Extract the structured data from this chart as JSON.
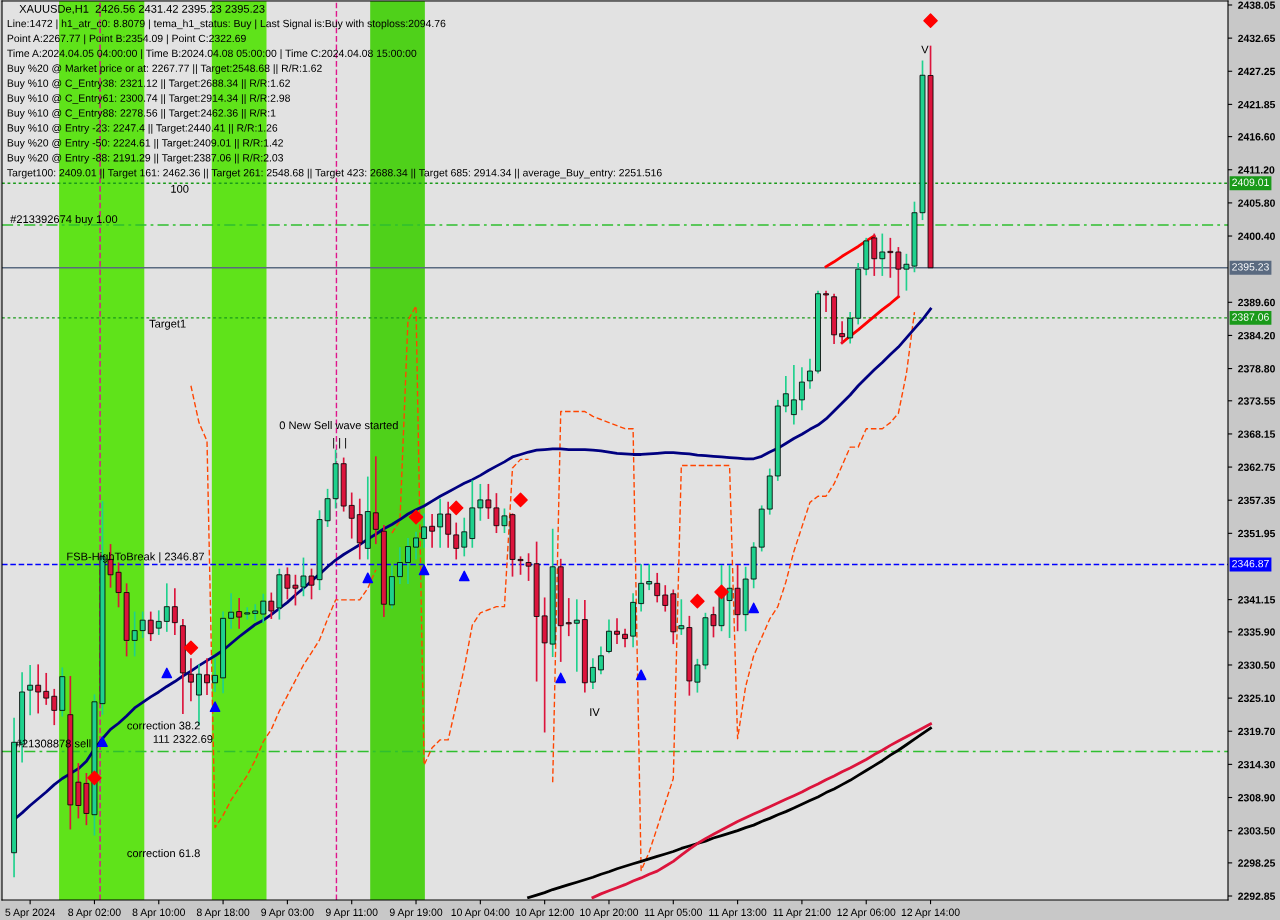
{
  "chart_data": {
    "type": "candlestick",
    "title": "XAUUSDe,H1  2426.56 2431.42 2395.23 2395.23",
    "annotations": [
      "Line:1472 | h1_atr_c0: 8.8079 | tema_h1_status: Buy | Last Signal is:Buy with stoploss:2094.76",
      "Point A:2267.77 | Point B:2354.09 | Point C:2322.69",
      "Time A:2024.04.05 04:00:00 | Time B:2024.04.08 05:00:00 | Time C:2024.04.08 15:00:00",
      "Buy %20 @ Market price or at: 2267.77 || Target:2548.68 || R/R:1.62",
      "Buy %10 @ C_Entry38: 2321.12 || Target:2688.34 || R/R:1.62",
      "Buy %10 @ C_Entry61: 2300.74 || Target:2914.34 || R/R:2.98",
      "Buy %10 @ C_Entry88: 2278.56 || Target:2462.36 || R/R:1",
      "Buy %10 @ Entry -23: 2247.4 || Target:2440.41 || R/R:1.26",
      "Buy %20 @ Entry -50: 2224.61 || Target:2409.01 || R/R:1.42",
      "Buy %20 @ Entry -88: 2191.29 || Target:2387.06 || R/R:2.03",
      "Target100: 2409.01 || Target 161: 2462.36 || Target 261: 2548.68 || Target 423: 2688.34 || Target 685: 2914.34 || average_Buy_entry: 2251.516",
      "100",
      "Target1",
      {
        "text": "#213392674 buy 1.00",
        "y": 2403.0
      },
      "FSB-HighToBreak | 2346.87",
      "0 New Sell wave started",
      "| | |",
      "correction 38.2",
      "111 2322.69",
      "#21308878 sell",
      "correction 61.8",
      "IV",
      "V"
    ],
    "categories": [
      null,
      null,
      "5 Apr 2024",
      null,
      null,
      null,
      null,
      null,
      null,
      null,
      "8 Apr 02:00",
      null,
      null,
      null,
      null,
      null,
      null,
      null,
      "8 Apr 10:00",
      null,
      null,
      null,
      null,
      null,
      null,
      null,
      "8 Apr 18:00",
      null,
      null,
      null,
      null,
      null,
      null,
      null,
      "9 Apr 03:00",
      null,
      null,
      null,
      null,
      null,
      null,
      null,
      "9 Apr 11:00",
      null,
      null,
      null,
      null,
      null,
      null,
      null,
      "9 Apr 19:00",
      null,
      null,
      null,
      null,
      null,
      null,
      null,
      "10 Apr 04:00",
      null,
      null,
      null,
      null,
      null,
      null,
      null,
      "10 Apr 12:00",
      null,
      null,
      null,
      null,
      null,
      null,
      null,
      "10 Apr 20:00",
      null,
      null,
      null,
      null,
      null,
      null,
      null,
      "11 Apr 05:00",
      null,
      null,
      null,
      null,
      null,
      null,
      null,
      "11 Apr 13:00",
      null,
      null,
      null,
      null,
      null,
      null,
      null,
      "11 Apr 21:00",
      null,
      null,
      null,
      null,
      null,
      null,
      null,
      "12 Apr 06:00",
      null,
      null,
      null,
      null,
      null,
      null,
      null,
      "12 Apr 14:00"
    ],
    "ohlc": [
      [
        2299.9,
        2321.9,
        2295.9,
        2317.9
      ],
      [
        2317.6,
        2329.3,
        2314.6,
        2326.1
      ],
      [
        2326.4,
        2330.5,
        2322.3,
        2327.2
      ],
      [
        2327.2,
        2330.6,
        2322.6,
        2326.1
      ],
      [
        2326.2,
        2329.2,
        2324,
        2325.1
      ],
      [
        2325.4,
        2326.6,
        2320.7,
        2323.1
      ],
      [
        2323.1,
        2330.1,
        2322.1,
        2328.6
      ],
      [
        2322.4,
        2328.7,
        2303.7,
        2307.7
      ],
      [
        2311.4,
        2314.5,
        2305.5,
        2307.6
      ],
      [
        2311.2,
        2312.9,
        2304.4,
        2306.3
      ],
      [
        2306.1,
        2325.7,
        2302.7,
        2324.5
      ],
      [
        2324.2,
        2357.2,
        2322.4,
        2348.2
      ],
      [
        2347.7,
        2350.2,
        2343.1,
        2345.2
      ],
      [
        2345.6,
        2347.2,
        2339.9,
        2342.3
      ],
      [
        2342.3,
        2343.8,
        2331.9,
        2334.5
      ],
      [
        2334.5,
        2339.2,
        2331.9,
        2336.1
      ],
      [
        2336.1,
        2339.2,
        2334.9,
        2337.8
      ],
      [
        2337.8,
        2339.2,
        2334.4,
        2335.6
      ],
      [
        2336.5,
        2339.4,
        2335.4,
        2337.6
      ],
      [
        2337.6,
        2343.8,
        2335.9,
        2340
      ],
      [
        2340,
        2343,
        2335.4,
        2337.4
      ],
      [
        2336.9,
        2338,
        2322.5,
        2329.2
      ],
      [
        2329,
        2331.6,
        2324.6,
        2327.7
      ],
      [
        2325.6,
        2330.6,
        2320.6,
        2329
      ],
      [
        2328.9,
        2331.6,
        2325.6,
        2327.6
      ],
      [
        2327.6,
        2331.6,
        2326.1,
        2328.8
      ],
      [
        2328.4,
        2339.2,
        2325.9,
        2338.1
      ],
      [
        2338.1,
        2342.2,
        2336.4,
        2339.1
      ],
      [
        2339.2,
        2341.4,
        2336.4,
        2338.3
      ],
      [
        2338.8,
        2339.9,
        2337.9,
        2339
      ],
      [
        2338.9,
        2340.4,
        2337.7,
        2339.3
      ],
      [
        2338.8,
        2342.1,
        2337.3,
        2340.9
      ],
      [
        2340.9,
        2342.3,
        2338,
        2339.3
      ],
      [
        2339.8,
        2346.2,
        2337.9,
        2345.2
      ],
      [
        2345.2,
        2346.4,
        2341.2,
        2343
      ],
      [
        2343.5,
        2345.2,
        2340.2,
        2343
      ],
      [
        2343.2,
        2348,
        2341.7,
        2345
      ],
      [
        2345,
        2346.2,
        2341.2,
        2343.5
      ],
      [
        2344.4,
        2355.7,
        2342.7,
        2354.2
      ],
      [
        2354,
        2359.2,
        2353,
        2357.6
      ],
      [
        2357.6,
        2365.6,
        2356,
        2363.3
      ],
      [
        2363.3,
        2364.3,
        2355.5,
        2356.4
      ],
      [
        2356.5,
        2358.6,
        2351.1,
        2354.4
      ],
      [
        2355,
        2357.6,
        2347.7,
        2350.4
      ],
      [
        2349.5,
        2361.2,
        2347.7,
        2355.5
      ],
      [
        2355.3,
        2364.5,
        2350.2,
        2352.6
      ],
      [
        2352.3,
        2353.3,
        2338.3,
        2340.4
      ],
      [
        2340.3,
        2346.7,
        2339.7,
        2344.9
      ],
      [
        2344.9,
        2349.7,
        2343.7,
        2347.2
      ],
      [
        2347.2,
        2351.2,
        2343.7,
        2349.8
      ],
      [
        2349.7,
        2352.2,
        2347.7,
        2351.2
      ],
      [
        2351.1,
        2355.2,
        2349.6,
        2353
      ],
      [
        2353.1,
        2355.1,
        2349.6,
        2352.3
      ],
      [
        2353,
        2357.6,
        2349.6,
        2355.1
      ],
      [
        2355.1,
        2357.1,
        2349.6,
        2351.8
      ],
      [
        2351.7,
        2353.7,
        2347.7,
        2349.5
      ],
      [
        2349.7,
        2354.5,
        2348.2,
        2352.2
      ],
      [
        2351.1,
        2360.6,
        2349.6,
        2356.1
      ],
      [
        2356.1,
        2360,
        2354,
        2357.4
      ],
      [
        2357.4,
        2360,
        2354.3,
        2356.1
      ],
      [
        2356.1,
        2358.5,
        2352,
        2353.2
      ],
      [
        2353.2,
        2356,
        2352,
        2354.8
      ],
      [
        2355,
        2355.2,
        2344.9,
        2347.7
      ],
      [
        2347.7,
        2348.2,
        2345.2,
        2347.5
      ],
      [
        2347.2,
        2348.7,
        2344.2,
        2346.6
      ],
      [
        2347,
        2350.6,
        2327.8,
        2338.4
      ],
      [
        2338.5,
        2341.5,
        2319.5,
        2334.1
      ],
      [
        2333.9,
        2352.7,
        2331.8,
        2346.5
      ],
      [
        2346.5,
        2347.8,
        2331,
        2336.9
      ],
      [
        2337.4,
        2341.4,
        2335.2,
        2337.2
      ],
      [
        2337.3,
        2341.2,
        2329.4,
        2337.8
      ],
      [
        2337.9,
        2341.1,
        2326,
        2327.6
      ],
      [
        2327.7,
        2331.6,
        2326.6,
        2330.1
      ],
      [
        2329.7,
        2333.5,
        2329,
        2332
      ],
      [
        2332.7,
        2337.9,
        2332.4,
        2336
      ],
      [
        2336,
        2338.1,
        2333.9,
        2335.5
      ],
      [
        2335.5,
        2336.4,
        2333.4,
        2334.8
      ],
      [
        2335.2,
        2342.2,
        2333.4,
        2340.7
      ],
      [
        2340.5,
        2346.9,
        2339.2,
        2343.8
      ],
      [
        2343.7,
        2346.9,
        2342.7,
        2344.1
      ],
      [
        2343.8,
        2345.5,
        2340.7,
        2341.8
      ],
      [
        2341.9,
        2343.5,
        2339.2,
        2340.2
      ],
      [
        2342.1,
        2342.8,
        2333.9,
        2335.9
      ],
      [
        2336.4,
        2341.2,
        2335.4,
        2336.9
      ],
      [
        2336.6,
        2338.5,
        2325.5,
        2327.9
      ],
      [
        2327.7,
        2331.5,
        2326,
        2330.5
      ],
      [
        2330.5,
        2339,
        2329.8,
        2338.2
      ],
      [
        2338.7,
        2340,
        2335,
        2336.9
      ],
      [
        2336.9,
        2346.8,
        2336,
        2343
      ],
      [
        2341,
        2346.8,
        2334.9,
        2343
      ],
      [
        2343,
        2346.8,
        2336,
        2338.7
      ],
      [
        2338.7,
        2346.5,
        2336,
        2344.5
      ],
      [
        2344.5,
        2350.5,
        2343,
        2349.7
      ],
      [
        2349.7,
        2356.5,
        2349,
        2355.9
      ],
      [
        2355.9,
        2362.5,
        2355,
        2361.3
      ],
      [
        2361.3,
        2373.7,
        2360.5,
        2372.7
      ],
      [
        2372.7,
        2377.6,
        2371.7,
        2374.7
      ],
      [
        2371.3,
        2379.4,
        2369.7,
        2373.7
      ],
      [
        2373.7,
        2379,
        2372,
        2376.6
      ],
      [
        2376.8,
        2380.4,
        2375.5,
        2378.4
      ],
      [
        2378.4,
        2391.5,
        2378,
        2391
      ],
      [
        2391,
        2391.5,
        2388,
        2390.8
      ],
      [
        2390.5,
        2391,
        2382.8,
        2384.3
      ],
      [
        2384.5,
        2386.5,
        2382.8,
        2384
      ],
      [
        2383.8,
        2388,
        2382.9,
        2387
      ],
      [
        2387,
        2396,
        2386,
        2395
      ],
      [
        2395,
        2400.1,
        2394,
        2399.6
      ],
      [
        2400.1,
        2400.8,
        2393.9,
        2396.7
      ],
      [
        2396.7,
        2400.8,
        2393.9,
        2397.8
      ],
      [
        2397.9,
        2400.1,
        2393.6,
        2397.7
      ],
      [
        2397.8,
        2398.6,
        2390.5,
        2395
      ],
      [
        2395,
        2397.5,
        2391.5,
        2395.8
      ],
      [
        2395.5,
        2406,
        2394.5,
        2404.2
      ],
      [
        2404.2,
        2429,
        2403,
        2426.6
      ],
      [
        2426.56,
        2431.42,
        2395.23,
        2395.23
      ]
    ],
    "colors": [
      "#1fd18d",
      "#1fd18d",
      "#1fd18d",
      "#dc143c",
      "#dc143c",
      "#dc143c",
      "#1fd18d",
      "#dc143c",
      "#dc143c",
      "#dc143c",
      "#1fd18d",
      "#1fd18d",
      "#dc143c",
      "#dc143c",
      "#dc143c",
      "#1fd18d",
      "#1fd18d",
      "#dc143c",
      "#1fd18d",
      "#1fd18d",
      "#dc143c",
      "#dc143c",
      "#dc143c",
      "#1fd18d",
      "#dc143c",
      "#1fd18d",
      "#1fd18d",
      "#1fd18d",
      "#dc143c",
      "#1fd18d",
      "#1fd18d",
      "#1fd18d",
      "#dc143c",
      "#1fd18d",
      "#dc143c",
      "#dc143c",
      "#1fd18d",
      "#dc143c",
      "#1fd18d",
      "#1fd18d",
      "#1fd18d",
      "#dc143c",
      "#dc143c",
      "#dc143c",
      "#1fd18d",
      "#dc143c",
      "#dc143c",
      "#1fd18d",
      "#1fd18d",
      "#1fd18d",
      "#1fd18d",
      "#1fd18d",
      "#dc143c",
      "#1fd18d",
      "#dc143c",
      "#dc143c",
      "#1fd18d",
      "#1fd18d",
      "#1fd18d",
      "#dc143c",
      "#dc143c",
      "#1fd18d",
      "#dc143c",
      "#dc143c",
      "#dc143c",
      "#dc143c",
      "#dc143c",
      "#1fd18d",
      "#dc143c",
      "#dc143c",
      "#1fd18d",
      "#dc143c",
      "#1fd18d",
      "#1fd18d",
      "#1fd18d",
      "#dc143c",
      "#dc143c",
      "#1fd18d",
      "#1fd18d",
      "#1fd18d",
      "#dc143c",
      "#dc143c",
      "#dc143c",
      "#1fd18d",
      "#dc143c",
      "#1fd18d",
      "#1fd18d",
      "#dc143c",
      "#1fd18d",
      "#1fd18d",
      "#dc143c",
      "#1fd18d",
      "#1fd18d",
      "#1fd18d",
      "#1fd18d",
      "#1fd18d",
      "#1fd18d",
      "#1fd18d",
      "#1fd18d",
      "#1fd18d",
      "#1fd18d",
      "#dc143c",
      "#dc143c",
      "#dc143c",
      "#1fd18d",
      "#1fd18d",
      "#1fd18d",
      "#dc143c",
      "#1fd18d",
      "#dc143c",
      "#dc143c",
      "#1fd18d",
      "#1fd18d",
      "#1fd18d",
      "#dc143c"
    ],
    "series": [
      {
        "type": "line",
        "color": "#ff4500",
        "line_style": "dashed",
        "values": [
          null,
          null,
          null,
          null,
          null,
          null,
          null,
          null,
          null,
          null,
          null,
          null,
          null,
          null,
          null,
          null,
          null,
          null,
          null,
          null,
          null,
          null,
          2376,
          2370,
          2367,
          2304,
          2306,
          2308.5,
          2310.5,
          2312.5,
          2315,
          2318,
          2320,
          2323,
          2325.5,
          2328,
          2330.5,
          2332.5,
          2334.6,
          2338,
          2341.1,
          2341.1,
          2341.1,
          2341.1,
          2343,
          2346,
          null,
          2352,
          2354,
          2386.7,
          2389,
          2314.2,
          2317,
          2318.3,
          2318.3,
          2324,
          2330,
          2337,
          2339,
          2339.5,
          2340,
          2340,
          2362.6,
          2364,
          2364,
          null,
          null,
          2311.4,
          2371.8,
          2371.8,
          2371.8,
          2371.8,
          2371,
          2370.5,
          2370,
          2369.5,
          2369,
          2369,
          2297,
          2300,
          2304,
          2308,
          2312,
          2363,
          2363,
          2363,
          2363,
          2363,
          2363,
          2363,
          2318.5,
          2327,
          2332,
          2335,
          2338,
          2340,
          2344,
          2349,
          2353,
          2357,
          2358,
          2358,
          2360,
          2363,
          2366,
          2366,
          2369,
          2369,
          2369,
          2370,
          2371.5,
          2378,
          2388,
          null,
          null
        ]
      },
      {
        "type": "line",
        "color": "#000080",
        "line_style": "solid",
        "values": [
          2305.3,
          2306.4,
          2307.6,
          2308.7,
          2309.8,
          2311,
          2312,
          2312.8,
          2313.6,
          2314.8,
          2316.8,
          2318.5,
          2320,
          2321,
          2322.2,
          2323.5,
          2324.4,
          2325.3,
          2326.1,
          2327,
          2327.8,
          2328.7,
          2329.5,
          2330.4,
          2331.2,
          2332,
          2332.9,
          2334,
          2335.1,
          2336.1,
          2337.1,
          2337.8,
          2338.7,
          2339.7,
          2340.7,
          2341.9,
          2343,
          2344.2,
          2345.3,
          2346.5,
          2347.6,
          2348.5,
          2349.3,
          2350.1,
          2351,
          2351.8,
          2352.7,
          2353.4,
          2354.2,
          2355.1,
          2355.8,
          2356.4,
          2357.2,
          2358,
          2358.7,
          2359.4,
          2360.1,
          2360.7,
          2361.4,
          2362.2,
          2362.9,
          2363.6,
          2364.4,
          2364.8,
          2365.2,
          2365.5,
          2365.6,
          2365.7,
          2365.7,
          2365.6,
          2365.6,
          2365.6,
          2365.5,
          2365.4,
          2365.2,
          2365,
          2364.9,
          2364.8,
          2364.8,
          2364.9,
          2365,
          2365.1,
          2365.1,
          2365,
          2364.9,
          2364.7,
          2364.6,
          2364.5,
          2364.4,
          2364.3,
          2364.2,
          2364.1,
          2364.1,
          2364.5,
          2365.2,
          2365.8,
          2366.6,
          2367.4,
          2368.1,
          2368.9,
          2369.6,
          2370.6,
          2371.9,
          2373.2,
          2374.5,
          2376,
          2377.3,
          2378.6,
          2379.8,
          2381.1,
          2382.3,
          2383.8,
          2385.3,
          2386.8,
          2388.5
        ]
      },
      {
        "type": "line",
        "color": "#000000",
        "line_style": "solid",
        "values": [
          null,
          null,
          null,
          null,
          null,
          null,
          null,
          null,
          null,
          null,
          null,
          null,
          null,
          null,
          null,
          null,
          null,
          null,
          null,
          null,
          null,
          null,
          null,
          null,
          null,
          null,
          null,
          null,
          null,
          null,
          null,
          null,
          null,
          null,
          null,
          null,
          null,
          null,
          null,
          null,
          null,
          null,
          null,
          null,
          null,
          null,
          null,
          null,
          null,
          null,
          null,
          null,
          null,
          null,
          null,
          null,
          null,
          null,
          null,
          null,
          null,
          null,
          null,
          null,
          2292.6,
          2293,
          2293.4,
          2293.9,
          2294.3,
          2294.7,
          2295.1,
          2295.5,
          2295.9,
          2296.4,
          2296.8,
          2297.3,
          2297.7,
          2298.1,
          2298.5,
          2298.9,
          2299.3,
          2299.7,
          2300.1,
          2300.6,
          2301,
          2301.4,
          2301.8,
          2302.3,
          2302.7,
          2303.1,
          2303.5,
          2304,
          2304.4,
          2305,
          2305.5,
          2306.1,
          2306.6,
          2307.2,
          2307.8,
          2308.4,
          2309,
          2309.7,
          2310.3,
          2311,
          2311.7,
          2312.5,
          2313.3,
          2314.1,
          2314.9,
          2315.8,
          2316.6,
          2317.5,
          2318.4,
          2319.3,
          2320.2
        ]
      },
      {
        "type": "line",
        "color": "#dc143c",
        "line_style": "solid",
        "values": [
          null,
          null,
          null,
          null,
          null,
          null,
          null,
          null,
          null,
          null,
          null,
          null,
          null,
          null,
          null,
          null,
          null,
          null,
          null,
          null,
          null,
          null,
          null,
          null,
          null,
          null,
          null,
          null,
          null,
          null,
          null,
          null,
          null,
          null,
          null,
          null,
          null,
          null,
          null,
          null,
          null,
          null,
          null,
          null,
          null,
          null,
          null,
          null,
          null,
          null,
          null,
          null,
          null,
          null,
          null,
          null,
          null,
          null,
          null,
          null,
          null,
          null,
          null,
          null,
          null,
          null,
          null,
          null,
          null,
          null,
          null,
          null,
          2292.6,
          2293.2,
          2293.7,
          2294.2,
          2294.7,
          2295.3,
          2295.8,
          2296.4,
          2296.9,
          2297.7,
          2298.5,
          2299.5,
          2300.5,
          2301.4,
          2302.2,
          2302.9,
          2303.6,
          2304.3,
          2305,
          2305.6,
          2306.2,
          2306.8,
          2307.4,
          2308,
          2308.6,
          2309.2,
          2309.8,
          2310.5,
          2311.1,
          2311.8,
          2312.4,
          2313.1,
          2313.7,
          2314.4,
          2315.1,
          2315.9,
          2316.6,
          2317.4,
          2318.1,
          2318.8,
          2319.5,
          2320.2,
          2320.9
        ]
      },
      {
        "type": "line",
        "color": "#ff0000",
        "line_style": "solid",
        "values": [
          null,
          null,
          null,
          null,
          null,
          null,
          null,
          null,
          null,
          null,
          null,
          null,
          null,
          null,
          null,
          null,
          null,
          null,
          null,
          null,
          null,
          null,
          null,
          null,
          null,
          null,
          null,
          null,
          null,
          null,
          null,
          null,
          null,
          null,
          null,
          null,
          null,
          null,
          null,
          null,
          null,
          null,
          null,
          null,
          null,
          null,
          null,
          null,
          null,
          null,
          null,
          null,
          null,
          null,
          null,
          null,
          null,
          null,
          null,
          null,
          null,
          null,
          null,
          null,
          null,
          null,
          null,
          null,
          null,
          null,
          null,
          null,
          null,
          null,
          null,
          null,
          null,
          null,
          null,
          null,
          null,
          null,
          null,
          null,
          null,
          null,
          null,
          null,
          null,
          null,
          null,
          null,
          null,
          null,
          null,
          null,
          null,
          null,
          null,
          null,
          null,
          2395.4,
          2396.2,
          2397.1,
          2397.9,
          2398.7,
          2399.6,
          2400.4,
          null,
          null,
          null,
          null,
          null,
          null,
          null
        ]
      },
      {
        "type": "line",
        "color": "#ff0000",
        "line_style": "solid",
        "values": [
          null,
          null,
          null,
          null,
          null,
          null,
          null,
          null,
          null,
          null,
          null,
          null,
          null,
          null,
          null,
          null,
          null,
          null,
          null,
          null,
          null,
          null,
          null,
          null,
          null,
          null,
          null,
          null,
          null,
          null,
          null,
          null,
          null,
          null,
          null,
          null,
          null,
          null,
          null,
          null,
          null,
          null,
          null,
          null,
          null,
          null,
          null,
          null,
          null,
          null,
          null,
          null,
          null,
          null,
          null,
          null,
          null,
          null,
          null,
          null,
          null,
          null,
          null,
          null,
          null,
          null,
          null,
          null,
          null,
          null,
          null,
          null,
          null,
          null,
          null,
          null,
          null,
          null,
          null,
          null,
          null,
          null,
          null,
          null,
          null,
          null,
          null,
          null,
          null,
          null,
          null,
          null,
          null,
          null,
          null,
          null,
          null,
          null,
          null,
          null,
          null,
          null,
          null,
          2383,
          2384.1,
          2385.1,
          2386.2,
          2387.3,
          2388.4,
          2389.4,
          2390.5,
          null,
          null,
          null,
          null
        ]
      },
      {
        "type": "scatter",
        "color": "#0000ff",
        "marker": "triangle",
        "values": [
          null,
          null,
          null,
          null,
          null,
          null,
          null,
          null,
          null,
          null,
          null,
          2318,
          null,
          null,
          null,
          null,
          null,
          null,
          null,
          2329.2,
          null,
          null,
          null,
          null,
          null,
          2323.7,
          null,
          null,
          null,
          null,
          null,
          null,
          null,
          null,
          null,
          null,
          null,
          null,
          null,
          null,
          null,
          null,
          null,
          null,
          2344.7,
          null,
          null,
          null,
          null,
          null,
          null,
          2346,
          null,
          null,
          null,
          null,
          2345,
          null,
          null,
          null,
          null,
          null,
          null,
          null,
          null,
          null,
          null,
          null,
          2328.4,
          null,
          null,
          null,
          null,
          null,
          null,
          null,
          null,
          null,
          2328.9,
          null,
          null,
          null,
          null,
          null,
          null,
          null,
          null,
          null,
          null,
          null,
          null,
          null,
          2339.8,
          null,
          null,
          null,
          null,
          null,
          null,
          null,
          null,
          null,
          null,
          null,
          null,
          null,
          null,
          null,
          null,
          null,
          null,
          null,
          null,
          null,
          null
        ]
      },
      {
        "type": "scatter",
        "color": "#ff0000",
        "marker": "diamond",
        "values": [
          null,
          null,
          null,
          null,
          null,
          null,
          null,
          null,
          null,
          null,
          2312.1,
          null,
          null,
          null,
          null,
          null,
          null,
          null,
          null,
          null,
          null,
          null,
          2333.3,
          null,
          null,
          null,
          null,
          null,
          null,
          null,
          null,
          null,
          null,
          null,
          null,
          null,
          null,
          null,
          null,
          null,
          null,
          null,
          null,
          null,
          null,
          null,
          null,
          null,
          null,
          null,
          2354.6,
          null,
          null,
          null,
          null,
          2356.1,
          null,
          null,
          null,
          null,
          null,
          null,
          null,
          2357.4,
          null,
          null,
          null,
          null,
          null,
          null,
          null,
          null,
          null,
          null,
          null,
          null,
          null,
          null,
          null,
          null,
          null,
          null,
          null,
          null,
          null,
          2340.9,
          null,
          null,
          2342.4,
          null,
          null,
          null,
          null,
          null,
          null,
          null,
          null,
          null,
          null,
          null,
          null,
          null,
          null,
          null,
          null,
          null,
          null,
          null,
          null,
          null,
          null,
          null,
          null,
          null,
          2435.5
        ]
      }
    ],
    "ref_lines": [
      {
        "axis": "y",
        "value": 2409.01,
        "label": "2409.01",
        "color": "#1a9a1a",
        "line_style": "dotted"
      },
      {
        "axis": "y",
        "value": 2402.2,
        "label": null,
        "color": "#2fbf2f",
        "line_style": "dashdot"
      },
      {
        "axis": "y",
        "value": 2395.23,
        "label": "2395.23",
        "color": "#5a6a80",
        "line_style": "solid"
      },
      {
        "axis": "y",
        "value": 2387.06,
        "label": "2387.06",
        "color": "#1a9a1a",
        "line_style": "dotted"
      },
      {
        "axis": "y",
        "value": 2346.87,
        "label": "2346.87",
        "color": "#0000ff",
        "line_style": "dashed"
      },
      {
        "axis": "y",
        "value": 2316.4,
        "label": null,
        "color": "#2fbf2f",
        "line_style": "dashdot"
      }
    ],
    "ylim": [
      2292.2,
      2438.7
    ],
    "yticks": [
      {
        "value": 2438.05,
        "label": "2438.05"
      },
      {
        "value": 2432.65,
        "label": "2432.65"
      },
      {
        "value": 2427.25,
        "label": "2427.25"
      },
      {
        "value": 2421.85,
        "label": "2421.85"
      },
      {
        "value": 2416.6,
        "label": "2416.60"
      },
      {
        "value": 2411.2,
        "label": "2411.20"
      },
      {
        "value": 2405.8,
        "label": "2405.80"
      },
      {
        "value": 2400.4,
        "label": "2400.40"
      },
      {
        "value": 2389.6,
        "label": "2389.60"
      },
      {
        "value": 2384.2,
        "label": "2384.20"
      },
      {
        "value": 2378.8,
        "label": "2378.80"
      },
      {
        "value": 2373.55,
        "label": "2373.55"
      },
      {
        "value": 2368.15,
        "label": "2368.15"
      },
      {
        "value": 2362.75,
        "label": "2362.75"
      },
      {
        "value": 2357.35,
        "label": "2357.35"
      },
      {
        "value": 2351.95,
        "label": "2351.95"
      },
      {
        "value": 2341.15,
        "label": "2341.15"
      },
      {
        "value": 2335.9,
        "label": "2335.90"
      },
      {
        "value": 2330.5,
        "label": "2330.50"
      },
      {
        "value": 2325.1,
        "label": "2325.10"
      },
      {
        "value": 2319.7,
        "label": "2319.70"
      },
      {
        "value": 2314.3,
        "label": "2314.30"
      },
      {
        "value": 2308.9,
        "label": "2308.90"
      },
      {
        "value": 2303.5,
        "label": "2303.50"
      },
      {
        "value": 2298.25,
        "label": "2298.25"
      },
      {
        "value": 2292.85,
        "label": "2292.85"
      }
    ]
  }
}
